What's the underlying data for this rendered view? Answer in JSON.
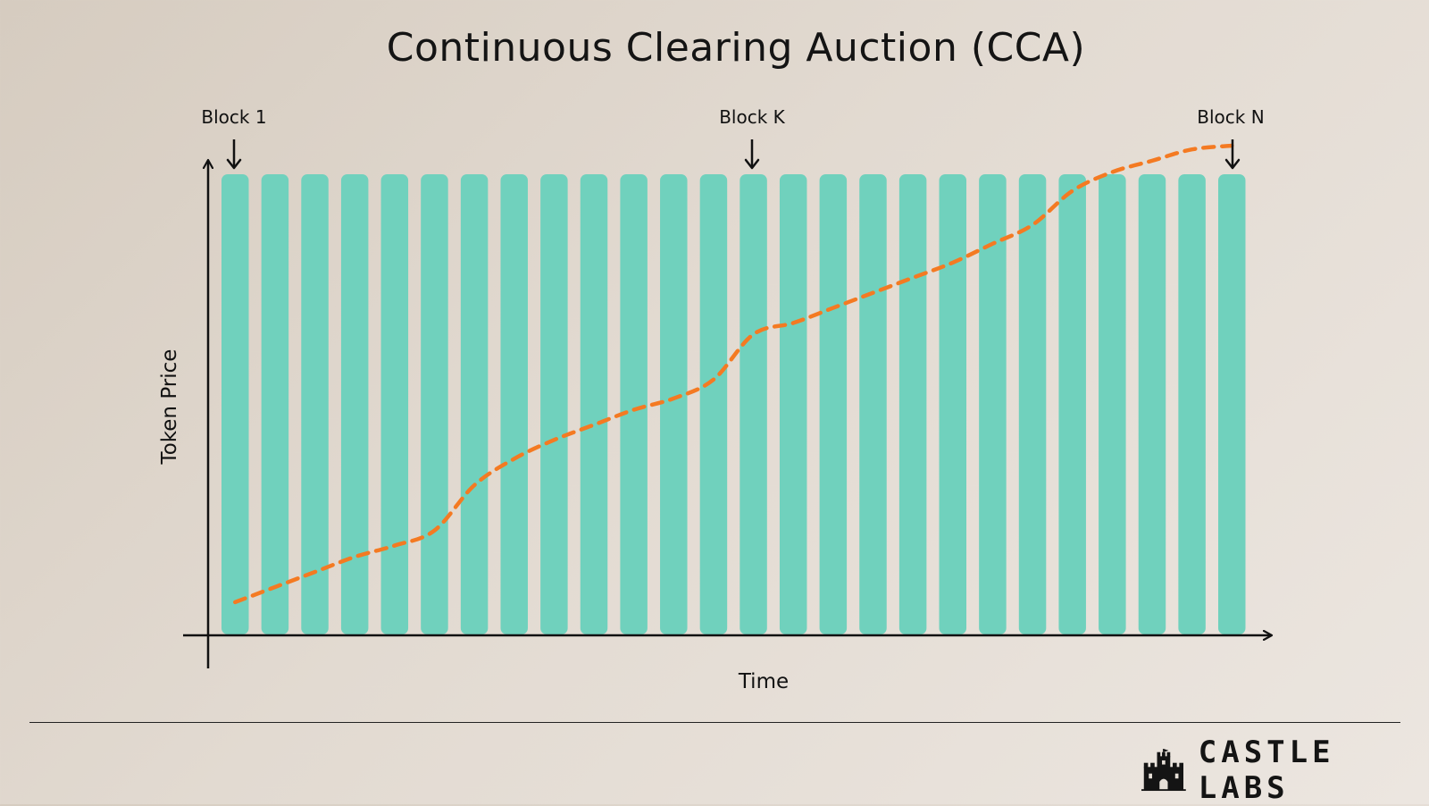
{
  "title": "Continuous Clearing Auction (CCA)",
  "markers": {
    "first": "Block 1",
    "middle": "Block K",
    "last": "Block N"
  },
  "axes": {
    "x_label": "Time",
    "y_label": "Token Price"
  },
  "diagram": {
    "block_count": 26,
    "block_color": "#70d1bd",
    "price_line_color": "#f47a22",
    "axis_color": "#111111",
    "price_curve": [
      0.05,
      0.09,
      0.13,
      0.17,
      0.2,
      0.24,
      0.36,
      0.43,
      0.48,
      0.52,
      0.56,
      0.59,
      0.64,
      0.76,
      0.79,
      0.83,
      0.87,
      0.91,
      0.95,
      1.0,
      1.05,
      1.14,
      1.19,
      1.22,
      1.25,
      1.26
    ]
  },
  "brand": {
    "name": "CASTLE LABS",
    "logo_icon": "castle-icon"
  }
}
